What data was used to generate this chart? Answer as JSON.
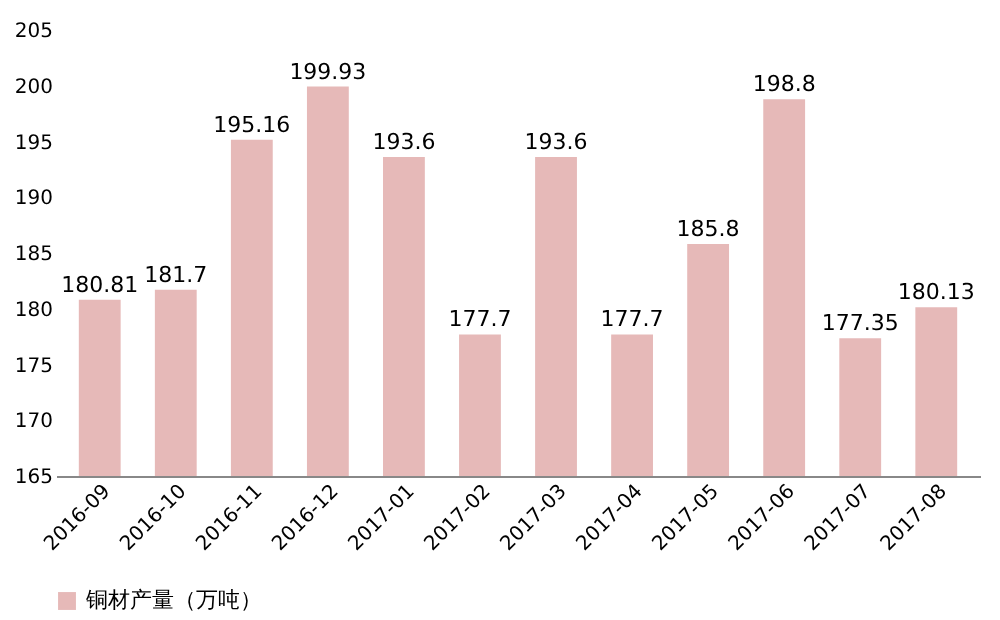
{
  "chart_data": {
    "type": "bar",
    "categories": [
      "2016-09",
      "2016-10",
      "2016-11",
      "2016-12",
      "2017-01",
      "2017-02",
      "2017-03",
      "2017-04",
      "2017-05",
      "2017-06",
      "2017-07",
      "2017-08"
    ],
    "series": [
      {
        "name": "铜材产量（万吨）",
        "color": "#e6b9b8",
        "values": [
          180.81,
          181.7,
          195.16,
          199.93,
          193.6,
          177.7,
          193.6,
          177.7,
          185.8,
          198.8,
          177.35,
          180.13
        ]
      }
    ],
    "ylim": [
      165,
      205
    ],
    "yticks": [
      165,
      170,
      175,
      180,
      185,
      190,
      195,
      200,
      205
    ],
    "data_labels": true,
    "legend": "bottom",
    "grid": false
  }
}
